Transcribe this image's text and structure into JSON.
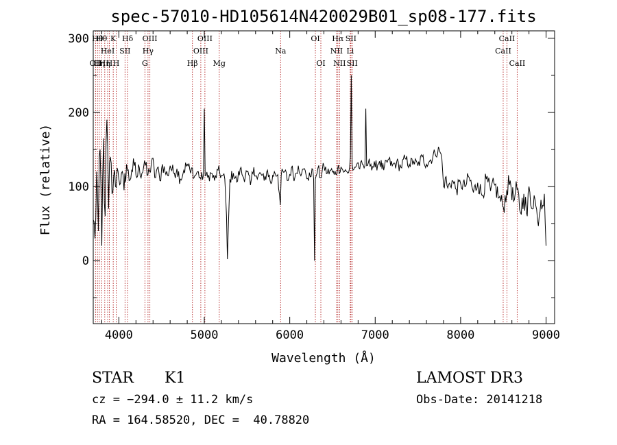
{
  "chart_data": {
    "type": "line",
    "title": "spec-57010-HD105614N420029B01_sp08-177.fits",
    "xlabel": "Wavelength (Å)",
    "ylabel": "Flux (relative)",
    "xlim": [
      3700,
      9100
    ],
    "ylim": [
      -85,
      310
    ],
    "xticks": [
      4000,
      5000,
      6000,
      7000,
      8000,
      9000
    ],
    "yticks": [
      0,
      100,
      200,
      300
    ],
    "series": [
      {
        "name": "flux",
        "color": "#000000",
        "x": [
          3700,
          3720,
          3740,
          3760,
          3780,
          3800,
          3820,
          3840,
          3860,
          3880,
          3900,
          3920,
          3940,
          3960,
          3980,
          4000,
          4030,
          4060,
          4090,
          4120,
          4150,
          4180,
          4210,
          4240,
          4270,
          4300,
          4330,
          4360,
          4390,
          4420,
          4450,
          4480,
          4510,
          4540,
          4570,
          4600,
          4640,
          4680,
          4720,
          4760,
          4800,
          4840,
          4861,
          4880,
          4920,
          4960,
          4990,
          5000,
          5010,
          5040,
          5080,
          5120,
          5160,
          5200,
          5240,
          5260,
          5270,
          5280,
          5300,
          5340,
          5380,
          5420,
          5460,
          5500,
          5540,
          5580,
          5620,
          5660,
          5700,
          5740,
          5780,
          5820,
          5860,
          5890,
          5900,
          5940,
          5980,
          6020,
          6060,
          6100,
          6140,
          6180,
          6220,
          6260,
          6280,
          6290,
          6300,
          6310,
          6330,
          6360,
          6400,
          6440,
          6480,
          6520,
          6560,
          6600,
          6640,
          6680,
          6700,
          6710,
          6720,
          6730,
          6740,
          6760,
          6780,
          6800,
          6820,
          6850,
          6870,
          6880,
          6890,
          6900,
          6920,
          6950,
          7000,
          7050,
          7100,
          7150,
          7200,
          7250,
          7300,
          7350,
          7400,
          7450,
          7500,
          7550,
          7600,
          7650,
          7700,
          7750,
          7780,
          7800,
          7820,
          7850,
          7900,
          7950,
          8000,
          8050,
          8100,
          8150,
          8200,
          8250,
          8300,
          8350,
          8400,
          8450,
          8500,
          8540,
          8580,
          8620,
          8660,
          8700,
          8740,
          8780,
          8800,
          8820,
          8860,
          8900,
          8940,
          8980,
          9000
        ],
        "y": [
          55,
          30,
          120,
          40,
          150,
          20,
          165,
          60,
          190,
          70,
          140,
          90,
          115,
          100,
          125,
          110,
          118,
          95,
          130,
          108,
          122,
          128,
          112,
          125,
          118,
          135,
          115,
          120,
          138,
          112,
          125,
          108,
          130,
          120,
          115,
          128,
          118,
          124,
          110,
          122,
          130,
          118,
          125,
          112,
          120,
          110,
          116,
          205,
          115,
          112,
          118,
          108,
          122,
          115,
          110,
          60,
          2,
          40,
          110,
          118,
          106,
          124,
          112,
          120,
          102,
          126,
          110,
          118,
          108,
          122,
          104,
          120,
          116,
          75,
          115,
          120,
          108,
          125,
          112,
          128,
          118,
          122,
          108,
          124,
          110,
          0,
          110,
          115,
          125,
          112,
          128,
          118,
          122,
          116,
          124,
          126,
          120,
          118,
          125,
          140,
          250,
          130,
          122,
          126,
          128,
          132,
          124,
          130,
          125,
          128,
          205,
          128,
          132,
          130,
          126,
          134,
          122,
          136,
          128,
          132,
          126,
          138,
          130,
          134,
          128,
          140,
          130,
          136,
          145,
          150,
          138,
          100,
          112,
          98,
          108,
          96,
          104,
          100,
          112,
          92,
          105,
          88,
          110,
          94,
          102,
          85,
          72,
          95,
          108,
          80,
          96,
          65,
          90,
          60,
          100,
          75,
          88,
          55,
          82,
          90,
          20
        ],
        "noise_amplitude": [
          30,
          35,
          60,
          40,
          50,
          45,
          60,
          45,
          45,
          40,
          40,
          30,
          25,
          25,
          20,
          20,
          18,
          16,
          16,
          15,
          14,
          14,
          14,
          14,
          12,
          12,
          12,
          12,
          12,
          12,
          10,
          10,
          10,
          10,
          10,
          10,
          10,
          10,
          10,
          10,
          10,
          10,
          8,
          8,
          8,
          8,
          8,
          5,
          8,
          8,
          8,
          8,
          8,
          8,
          8,
          5,
          2,
          5,
          8,
          8,
          8,
          8,
          8,
          8,
          8,
          8,
          8,
          8,
          8,
          8,
          8,
          8,
          8,
          5,
          8,
          8,
          8,
          8,
          8,
          8,
          8,
          8,
          8,
          8,
          8,
          2,
          8,
          8,
          8,
          8,
          8,
          8,
          8,
          8,
          8,
          8,
          8,
          8,
          8,
          8,
          5,
          8,
          8,
          8,
          8,
          8,
          8,
          8,
          8,
          8,
          5,
          8,
          8,
          8,
          8,
          8,
          8,
          8,
          8,
          8,
          8,
          8,
          8,
          8,
          8,
          8,
          8,
          8,
          8,
          8,
          8,
          10,
          10,
          10,
          10,
          10,
          10,
          10,
          12,
          12,
          12,
          12,
          12,
          12,
          14,
          14,
          14,
          14,
          14,
          14,
          16,
          16,
          16,
          16,
          16,
          16,
          18,
          18,
          18,
          18,
          5
        ]
      }
    ],
    "line_markers": [
      {
        "wave": 3727,
        "label": "OII",
        "row": 2
      },
      {
        "wave": 3750,
        "label": "Hθ",
        "row": 0
      },
      {
        "wave": 3771,
        "label": "Hη",
        "row": 2
      },
      {
        "wave": 3798,
        "label": "Hθ",
        "row": 0
      },
      {
        "wave": 3835,
        "label": "Hη",
        "row": 2
      },
      {
        "wave": 3869,
        "label": "HeI",
        "row": 1
      },
      {
        "wave": 3889,
        "label": "H",
        "row": 2
      },
      {
        "wave": 3934,
        "label": "K",
        "row": 0
      },
      {
        "wave": 3969,
        "label": "H",
        "row": 2
      },
      {
        "wave": 4072,
        "label": "SII",
        "row": 1
      },
      {
        "wave": 4102,
        "label": "Hδ",
        "row": 0
      },
      {
        "wave": 4305,
        "label": "G",
        "row": 2
      },
      {
        "wave": 4341,
        "label": "Hγ",
        "row": 1
      },
      {
        "wave": 4363,
        "label": "OIII",
        "row": 0
      },
      {
        "wave": 4861,
        "label": "Hβ",
        "row": 2
      },
      {
        "wave": 4959,
        "label": "OIII",
        "row": 1
      },
      {
        "wave": 5007,
        "label": "OIII",
        "row": 0
      },
      {
        "wave": 5175,
        "label": "Mg",
        "row": 2
      },
      {
        "wave": 5893,
        "label": "Na",
        "row": 1
      },
      {
        "wave": 6300,
        "label": "OI",
        "row": 0
      },
      {
        "wave": 6364,
        "label": "OI",
        "row": 2
      },
      {
        "wave": 6548,
        "label": "NII",
        "row": 1
      },
      {
        "wave": 6563,
        "label": "Hα",
        "row": 0
      },
      {
        "wave": 6583,
        "label": "NII",
        "row": 2
      },
      {
        "wave": 6708,
        "label": "Li",
        "row": 1
      },
      {
        "wave": 6716,
        "label": "SII",
        "row": 0
      },
      {
        "wave": 6731,
        "label": "SII",
        "row": 2
      },
      {
        "wave": 8498,
        "label": "CaII",
        "row": 1
      },
      {
        "wave": 8542,
        "label": "CaII",
        "row": 0
      },
      {
        "wave": 8662,
        "label": "CaII",
        "row": 2
      }
    ],
    "marker_color": "#b22222"
  },
  "info": {
    "class": "STAR",
    "subclass": "K1",
    "survey": "LAMOST DR3",
    "cz": "cz = −294.0 ± 11.2 km/s",
    "obs_date": "Obs-Date: 20141218",
    "radec": "RA = 164.58520, DEC =  40.78820"
  }
}
